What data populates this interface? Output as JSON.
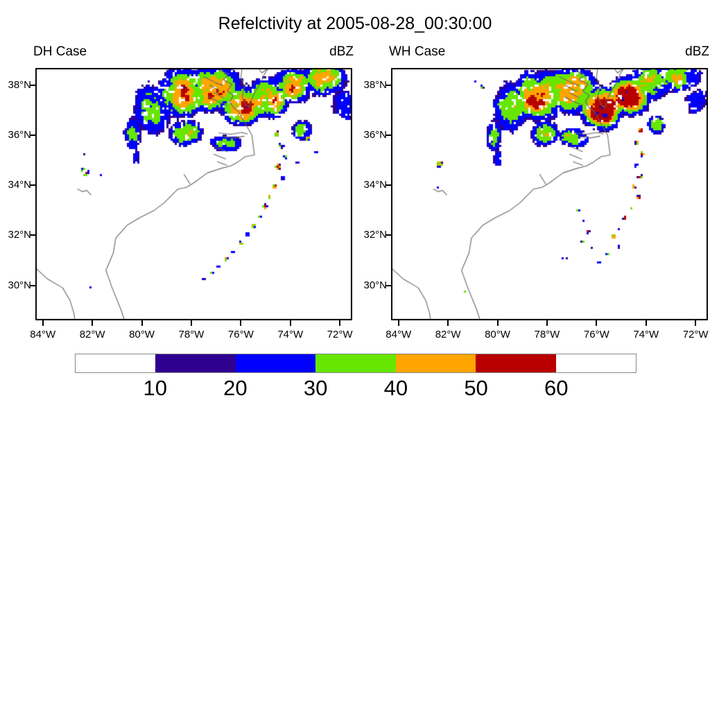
{
  "title": "Refelctivity at 2005-08-28_00:30:00",
  "panels": [
    {
      "label": "DH Case",
      "units": "dBZ"
    },
    {
      "label": "WH Case",
      "units": "dBZ"
    }
  ],
  "colorbar": {
    "labels": [
      "10",
      "20",
      "30",
      "40",
      "50",
      "60"
    ],
    "segment_colors": [
      "#FFFFFF",
      "#300090",
      "#0000FF",
      "#66E600",
      "#FFA500",
      "#B80000",
      "#FFFFFF"
    ],
    "border_color": "#888888"
  },
  "chart_data": {
    "type": "heatmap",
    "subtype": "radar_reflectivity_map_comparison",
    "title": "Refelctivity at 2005-08-28_00:30:00",
    "units": "dBZ",
    "levels": [
      10,
      20,
      30,
      40,
      50,
      60
    ],
    "level_colors": [
      "#300090",
      "#0000FF",
      "#66E600",
      "#FFA500",
      "#B80000"
    ],
    "background_color": "#FFFFFF",
    "coast_color": "#666666",
    "extent": {
      "lon_west": 84.3,
      "lon_east": 71.5,
      "lat_south": 28.6,
      "lat_north": 38.7
    },
    "x_ticks": [
      {
        "lon": 84,
        "label": "84°W"
      },
      {
        "lon": 82,
        "label": "82°W"
      },
      {
        "lon": 80,
        "label": "80°W"
      },
      {
        "lon": 78,
        "label": "78°W"
      },
      {
        "lon": 76,
        "label": "76°W"
      },
      {
        "lon": 74,
        "label": "74°W"
      },
      {
        "lon": 72,
        "label": "72°W"
      }
    ],
    "y_ticks": [
      {
        "lat": 38,
        "label": "38°N"
      },
      {
        "lat": 36,
        "label": "36°N"
      },
      {
        "lat": 34,
        "label": "34°N"
      },
      {
        "lat": 32,
        "label": "32°N"
      },
      {
        "lat": 30,
        "label": "30°N"
      }
    ],
    "panels": [
      {
        "name": "DH Case",
        "seed": 1,
        "bumps": [
          [
            79.6,
            37.1,
            1.15,
            1.5,
            34
          ],
          [
            78.4,
            37.7,
            1.35,
            1.3,
            48
          ],
          [
            77.1,
            37.9,
            1.45,
            1.25,
            50
          ],
          [
            76.0,
            37.2,
            1.05,
            1.05,
            56
          ],
          [
            74.9,
            37.5,
            1.05,
            1.0,
            54
          ],
          [
            73.9,
            38.0,
            1.25,
            0.95,
            46
          ],
          [
            72.7,
            38.3,
            1.3,
            1.0,
            40
          ],
          [
            71.9,
            37.2,
            0.9,
            0.9,
            30
          ],
          [
            80.35,
            36.1,
            0.5,
            1.0,
            32
          ],
          [
            80.2,
            35.1,
            0.32,
            0.6,
            26
          ],
          [
            76.6,
            35.7,
            0.9,
            0.5,
            36
          ],
          [
            73.5,
            36.2,
            0.55,
            0.55,
            42
          ],
          [
            78.2,
            36.1,
            0.9,
            0.75,
            38
          ]
        ],
        "cells": [
          [
            82.3,
            34.55,
            0.2,
            56
          ],
          [
            81.62,
            34.4,
            0.07,
            24
          ],
          [
            82.3,
            35.25,
            0.05,
            22
          ],
          [
            82.28,
            33.3,
            0.05,
            22
          ],
          [
            82.05,
            29.9,
            0.07,
            24
          ],
          [
            81.85,
            29.82,
            0.05,
            22
          ],
          [
            74.55,
            36.05,
            0.15,
            42
          ],
          [
            74.35,
            35.6,
            0.13,
            52
          ],
          [
            74.2,
            35.15,
            0.12,
            34
          ],
          [
            74.5,
            34.75,
            0.14,
            56
          ],
          [
            74.3,
            34.3,
            0.11,
            30
          ],
          [
            74.62,
            33.95,
            0.13,
            52
          ],
          [
            74.85,
            33.55,
            0.11,
            42
          ],
          [
            75.02,
            33.15,
            0.12,
            56
          ],
          [
            75.25,
            32.75,
            0.11,
            36
          ],
          [
            75.5,
            32.4,
            0.12,
            50
          ],
          [
            75.72,
            32.05,
            0.11,
            30
          ],
          [
            76.0,
            31.68,
            0.11,
            46
          ],
          [
            76.3,
            31.35,
            0.1,
            30
          ],
          [
            76.6,
            31.05,
            0.11,
            42
          ],
          [
            76.9,
            30.75,
            0.1,
            26
          ],
          [
            77.18,
            30.5,
            0.11,
            34
          ],
          [
            77.5,
            30.25,
            0.09,
            24
          ],
          [
            73.3,
            35.9,
            0.13,
            46
          ],
          [
            72.95,
            35.35,
            0.09,
            30
          ],
          [
            73.7,
            34.9,
            0.09,
            26
          ]
        ]
      },
      {
        "name": "WH Case",
        "seed": 2,
        "bumps": [
          [
            79.45,
            37.2,
            1.0,
            1.4,
            38
          ],
          [
            78.3,
            37.6,
            1.35,
            1.3,
            52
          ],
          [
            77.0,
            37.8,
            1.45,
            1.2,
            52
          ],
          [
            75.8,
            37.1,
            1.15,
            1.1,
            60
          ],
          [
            74.7,
            37.6,
            1.15,
            1.0,
            58
          ],
          [
            73.8,
            38.1,
            1.2,
            0.95,
            46
          ],
          [
            72.6,
            38.35,
            1.25,
            0.9,
            38
          ],
          [
            71.9,
            37.4,
            0.85,
            0.85,
            30
          ],
          [
            80.15,
            36.0,
            0.45,
            1.0,
            30
          ],
          [
            80.0,
            35.1,
            0.3,
            0.55,
            26
          ],
          [
            76.9,
            35.9,
            0.85,
            0.55,
            40
          ],
          [
            73.6,
            36.4,
            0.5,
            0.5,
            44
          ],
          [
            78.1,
            36.1,
            0.8,
            0.7,
            40
          ]
        ],
        "cells": [
          [
            82.35,
            34.85,
            0.16,
            46
          ],
          [
            82.4,
            33.95,
            0.07,
            24
          ],
          [
            80.9,
            38.15,
            0.1,
            30
          ],
          [
            80.62,
            37.95,
            0.09,
            46
          ],
          [
            80.78,
            37.6,
            0.07,
            26
          ],
          [
            79.45,
            31.45,
            0.06,
            22
          ],
          [
            79.28,
            31.38,
            0.06,
            22
          ],
          [
            81.3,
            29.75,
            0.07,
            42
          ],
          [
            81.12,
            29.68,
            0.05,
            22
          ],
          [
            74.2,
            36.2,
            0.14,
            52
          ],
          [
            74.35,
            35.7,
            0.12,
            42
          ],
          [
            74.15,
            35.25,
            0.12,
            54
          ],
          [
            74.4,
            34.8,
            0.11,
            30
          ],
          [
            74.25,
            34.35,
            0.12,
            52
          ],
          [
            74.5,
            33.95,
            0.11,
            44
          ],
          [
            74.3,
            33.5,
            0.11,
            56
          ],
          [
            74.6,
            33.1,
            0.11,
            36
          ],
          [
            74.85,
            32.7,
            0.11,
            52
          ],
          [
            75.1,
            32.3,
            0.1,
            30
          ],
          [
            75.3,
            31.95,
            0.11,
            48
          ],
          [
            75.08,
            31.55,
            0.09,
            26
          ],
          [
            75.55,
            31.25,
            0.09,
            42
          ],
          [
            75.9,
            30.95,
            0.09,
            26
          ],
          [
            76.35,
            32.15,
            0.1,
            46
          ],
          [
            76.55,
            31.75,
            0.09,
            30
          ],
          [
            76.18,
            31.5,
            0.07,
            24
          ],
          [
            76.75,
            33.0,
            0.09,
            38
          ],
          [
            76.5,
            32.6,
            0.08,
            26
          ],
          [
            77.4,
            31.1,
            0.07,
            24
          ],
          [
            77.2,
            31.05,
            0.06,
            22
          ]
        ]
      }
    ],
    "coastline": [
      [
        [
          84.3,
          30.7
        ],
        [
          83.8,
          30.25
        ],
        [
          83.2,
          29.9
        ],
        [
          82.9,
          29.4
        ],
        [
          82.75,
          28.9
        ],
        [
          82.7,
          28.6
        ]
      ],
      [
        [
          80.7,
          28.6
        ],
        [
          80.85,
          29.05
        ],
        [
          81.2,
          29.9
        ],
        [
          81.45,
          30.6
        ],
        [
          81.15,
          31.3
        ],
        [
          81.05,
          31.9
        ],
        [
          80.6,
          32.4
        ],
        [
          80.1,
          32.7
        ],
        [
          79.5,
          33.0
        ],
        [
          79.1,
          33.3
        ],
        [
          78.55,
          33.85
        ],
        [
          78.2,
          33.92
        ],
        [
          77.9,
          34.1
        ],
        [
          77.35,
          34.5
        ],
        [
          76.8,
          34.68
        ],
        [
          76.4,
          34.78
        ],
        [
          76.1,
          34.95
        ],
        [
          75.82,
          35.15
        ],
        [
          75.45,
          35.22
        ],
        [
          75.5,
          35.6
        ],
        [
          75.55,
          36.0
        ],
        [
          75.75,
          36.35
        ],
        [
          75.95,
          36.7
        ],
        [
          76.08,
          36.95
        ],
        [
          76.3,
          37.12
        ],
        [
          76.45,
          37.35
        ],
        [
          76.3,
          37.6
        ],
        [
          76.55,
          37.78
        ],
        [
          76.35,
          38.05
        ],
        [
          76.7,
          38.22
        ],
        [
          76.5,
          38.45
        ],
        [
          76.85,
          38.6
        ],
        [
          76.78,
          38.7
        ]
      ],
      [
        [
          75.95,
          38.7
        ],
        [
          76.0,
          38.3
        ],
        [
          75.85,
          37.95
        ],
        [
          75.95,
          37.55
        ],
        [
          75.8,
          37.2
        ],
        [
          75.65,
          37.12
        ],
        [
          75.6,
          37.35
        ],
        [
          75.45,
          37.7
        ],
        [
          75.2,
          38.1
        ],
        [
          75.05,
          38.45
        ],
        [
          74.88,
          38.7
        ]
      ],
      [
        [
          76.9,
          36.1
        ],
        [
          76.4,
          36.05
        ],
        [
          75.95,
          36.12
        ],
        [
          75.72,
          36.05
        ]
      ],
      [
        [
          76.7,
          35.95
        ],
        [
          76.25,
          35.9
        ],
        [
          75.85,
          35.97
        ]
      ],
      [
        [
          77.05,
          35.55
        ],
        [
          76.55,
          35.35
        ]
      ],
      [
        [
          77.1,
          35.25
        ],
        [
          76.6,
          35.05
        ]
      ],
      [
        [
          76.95,
          34.95
        ],
        [
          76.55,
          34.8
        ]
      ],
      [
        [
          77.3,
          37.55
        ],
        [
          76.9,
          37.35
        ],
        [
          76.55,
          37.2
        ]
      ],
      [
        [
          77.1,
          37.72
        ],
        [
          76.7,
          37.5
        ]
      ],
      [
        [
          77.25,
          38.0
        ],
        [
          76.8,
          37.76
        ]
      ],
      [
        [
          77.5,
          38.35
        ],
        [
          77.0,
          38.1
        ],
        [
          76.72,
          38.0
        ]
      ],
      [
        [
          78.3,
          34.45
        ],
        [
          78.05,
          34.05
        ]
      ],
      [
        [
          82.6,
          33.85
        ],
        [
          82.38,
          33.75
        ],
        [
          82.22,
          33.8
        ],
        [
          82.05,
          33.62
        ]
      ],
      [
        [
          75.3,
          38.7
        ],
        [
          75.15,
          38.5
        ],
        [
          74.95,
          38.65
        ]
      ]
    ]
  }
}
